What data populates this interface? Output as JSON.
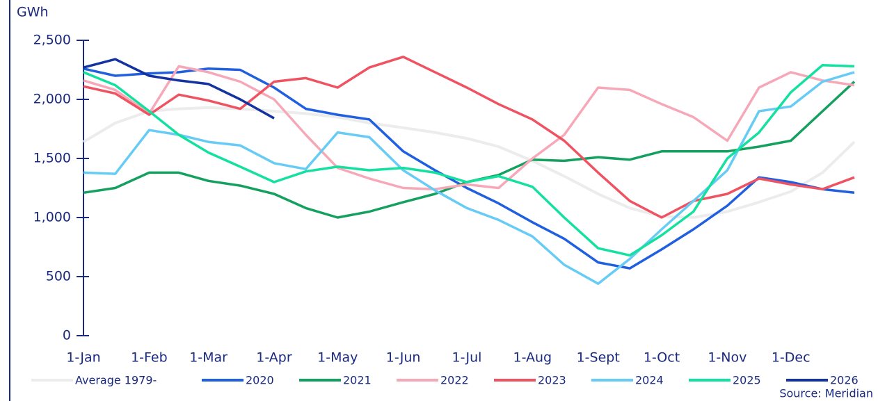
{
  "chart_data": {
    "type": "line",
    "y_unit": "GWh",
    "source": "Source: Meridian",
    "x": [
      0,
      15,
      31,
      45,
      59,
      74,
      90,
      105,
      120,
      135,
      151,
      166,
      181,
      196,
      212,
      227,
      243,
      258,
      273,
      288,
      304,
      319,
      334,
      349,
      364
    ],
    "xlim": [
      0,
      364
    ],
    "xticks": [
      {
        "value": 0,
        "label": "1-Jan"
      },
      {
        "value": 31,
        "label": "1-Feb"
      },
      {
        "value": 59,
        "label": "1-Mar"
      },
      {
        "value": 90,
        "label": "1-Apr"
      },
      {
        "value": 120,
        "label": "1-May"
      },
      {
        "value": 151,
        "label": "1-Jun"
      },
      {
        "value": 181,
        "label": "1-Jul"
      },
      {
        "value": 212,
        "label": "1-Aug"
      },
      {
        "value": 243,
        "label": "1-Sept"
      },
      {
        "value": 273,
        "label": "1-Oct"
      },
      {
        "value": 304,
        "label": "1-Nov"
      },
      {
        "value": 334,
        "label": "1-Dec"
      }
    ],
    "ylim": [
      0,
      2500
    ],
    "yticks": [
      0,
      500,
      {
        "value": 1000,
        "label": "1,000"
      },
      {
        "value": 1500,
        "label": "1,500"
      },
      {
        "value": 2000,
        "label": "2,000"
      },
      {
        "value": 2500,
        "label": "2,500"
      }
    ],
    "grid": false,
    "legend": "bottom",
    "series": [
      {
        "name": "Average 1979-",
        "color": "#ececec",
        "values": [
          1640,
          1800,
          1900,
          1920,
          1930,
          1920,
          1900,
          1880,
          1850,
          1800,
          1760,
          1720,
          1670,
          1600,
          1480,
          1350,
          1200,
          1080,
          1010,
          1000,
          1050,
          1130,
          1220,
          1380,
          1640
        ]
      },
      {
        "name": "2020",
        "color": "#1f5fe0",
        "values": [
          2260,
          2200,
          2220,
          2230,
          2260,
          2250,
          2100,
          1920,
          1870,
          1830,
          1560,
          1400,
          1250,
          1120,
          960,
          820,
          620,
          570,
          730,
          900,
          1100,
          1340,
          1300,
          1240,
          1210
        ]
      },
      {
        "name": "2021",
        "color": "#14a05e",
        "values": [
          1210,
          1250,
          1380,
          1380,
          1310,
          1270,
          1200,
          1080,
          1000,
          1050,
          1130,
          1200,
          1300,
          1360,
          1490,
          1480,
          1510,
          1490,
          1560,
          1560,
          1560,
          1600,
          1650,
          1900,
          2150
        ]
      },
      {
        "name": "2022",
        "color": "#f7a8b8",
        "values": [
          2160,
          2080,
          1880,
          2280,
          2230,
          2150,
          2000,
          1700,
          1420,
          1330,
          1250,
          1240,
          1280,
          1250,
          1500,
          1700,
          2100,
          2080,
          1960,
          1850,
          1650,
          2100,
          2230,
          2160,
          2120
        ]
      },
      {
        "name": "2023",
        "color": "#ef5361",
        "values": [
          2110,
          2050,
          1870,
          2040,
          1990,
          1920,
          2150,
          2180,
          2100,
          2270,
          2360,
          2230,
          2100,
          1960,
          1830,
          1650,
          1380,
          1140,
          1000,
          1140,
          1200,
          1330,
          1280,
          1240,
          1340
        ]
      },
      {
        "name": "2024",
        "color": "#66ccf5",
        "values": [
          1380,
          1370,
          1740,
          1700,
          1640,
          1610,
          1460,
          1410,
          1720,
          1680,
          1400,
          1230,
          1080,
          980,
          840,
          600,
          440,
          650,
          900,
          1140,
          1400,
          1900,
          1940,
          2150,
          2230
        ]
      },
      {
        "name": "2025",
        "color": "#14e0a0",
        "values": [
          2230,
          2120,
          1900,
          1700,
          1550,
          1430,
          1300,
          1390,
          1430,
          1400,
          1420,
          1380,
          1300,
          1350,
          1260,
          1000,
          740,
          680,
          850,
          1050,
          1500,
          1720,
          2060,
          2290,
          2280
        ]
      },
      {
        "name": "2026",
        "color": "#1432a0",
        "values": [
          2270,
          2340,
          2200,
          2160,
          2130,
          2000,
          1840,
          null,
          null,
          null,
          null,
          null,
          null,
          null,
          null,
          null,
          null,
          null,
          null,
          null,
          null,
          null,
          null,
          null,
          null
        ]
      }
    ]
  }
}
